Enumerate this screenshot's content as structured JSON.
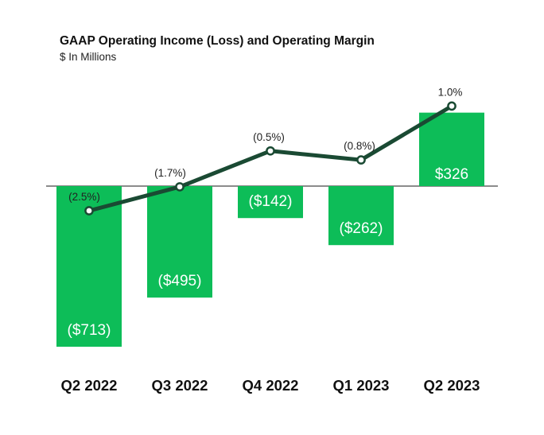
{
  "chart_data": {
    "type": "bar",
    "title": "GAAP Operating Income (Loss) and Operating Margin",
    "subtitle": "$ In Millions",
    "categories": [
      "Q2 2022",
      "Q3 2022",
      "Q4 2022",
      "Q1 2023",
      "Q2 2023"
    ],
    "series": [
      {
        "values": [
          -713,
          -495,
          -142,
          -262,
          326
        ],
        "labels": [
          "($713)",
          "($495)",
          "($142)",
          "($262)",
          "$326"
        ],
        "type": "bar",
        "color": "#0dbd58"
      },
      {
        "values": [
          -2.5,
          -1.7,
          -0.5,
          -0.8,
          1.0
        ],
        "labels": [
          "(2.5%)",
          "(1.7%)",
          "(0.5%)",
          "(0.8%)",
          "1.0%"
        ],
        "type": "line",
        "color": "#1a4a33"
      }
    ],
    "grid": false,
    "legend": "none"
  }
}
